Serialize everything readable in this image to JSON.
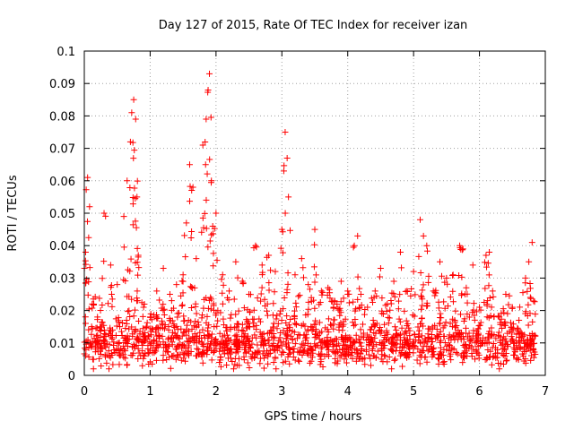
{
  "chart_data": {
    "type": "scatter",
    "title": "Day 127 of 2015, Rate Of TEC Index for receiver izan",
    "xlabel": "GPS time / hours",
    "ylabel": "ROTI / TECUs",
    "xlim": [
      0,
      7
    ],
    "ylim": [
      0,
      0.1
    ],
    "x_ticks": [
      "0",
      "1",
      "2",
      "3",
      "4",
      "5",
      "6",
      "7"
    ],
    "y_ticks": [
      "0",
      "0.01",
      "0.02",
      "0.03",
      "0.04",
      "0.05",
      "0.06",
      "0.07",
      "0.08",
      "0.09",
      "0.1"
    ],
    "grid": true,
    "marker": "plus",
    "series": [
      {
        "name": "ROTI",
        "color": "#ff0000",
        "x": [
          0.02,
          0.05,
          0.08,
          0.12,
          0.2,
          0.3,
          0.4,
          0.5,
          0.6,
          0.65,
          0.7,
          0.72,
          0.75,
          0.78,
          0.8,
          0.82,
          0.9,
          1.0,
          1.1,
          1.2,
          1.3,
          1.4,
          1.5,
          1.55,
          1.6,
          1.65,
          1.7,
          1.8,
          1.85,
          1.88,
          1.9,
          1.93,
          1.95,
          2.0,
          2.1,
          2.2,
          2.3,
          2.4,
          2.5,
          2.6,
          2.7,
          2.8,
          2.9,
          3.0,
          3.05,
          3.08,
          3.1,
          3.2,
          3.3,
          3.4,
          3.5,
          3.6,
          3.7,
          3.8,
          3.9,
          4.0,
          4.1,
          4.15,
          4.2,
          4.3,
          4.4,
          4.5,
          4.6,
          4.7,
          4.8,
          4.9,
          5.0,
          5.1,
          5.15,
          5.2,
          5.3,
          5.4,
          5.5,
          5.6,
          5.7,
          5.75,
          5.8,
          5.9,
          6.0,
          6.1,
          6.15,
          6.2,
          6.3,
          6.4,
          6.5,
          6.6,
          6.7,
          6.75,
          6.8
        ],
        "y": [
          0.038,
          0.061,
          0.052,
          0.022,
          0.018,
          0.05,
          0.034,
          0.028,
          0.049,
          0.06,
          0.072,
          0.081,
          0.085,
          0.079,
          0.055,
          0.037,
          0.021,
          0.018,
          0.026,
          0.033,
          0.025,
          0.028,
          0.031,
          0.047,
          0.065,
          0.058,
          0.036,
          0.071,
          0.079,
          0.088,
          0.093,
          0.06,
          0.046,
          0.05,
          0.031,
          0.026,
          0.035,
          0.029,
          0.025,
          0.04,
          0.034,
          0.037,
          0.032,
          0.045,
          0.075,
          0.067,
          0.055,
          0.031,
          0.036,
          0.028,
          0.045,
          0.026,
          0.027,
          0.023,
          0.029,
          0.026,
          0.04,
          0.043,
          0.025,
          0.021,
          0.024,
          0.033,
          0.022,
          0.029,
          0.038,
          0.026,
          0.032,
          0.048,
          0.043,
          0.04,
          0.026,
          0.035,
          0.03,
          0.031,
          0.04,
          0.039,
          0.027,
          0.034,
          0.021,
          0.037,
          0.038,
          0.026,
          0.018,
          0.025,
          0.021,
          0.017,
          0.03,
          0.035,
          0.041
        ]
      }
    ],
    "baseline_band": {
      "x_range": [
        0,
        6.85
      ],
      "y_range": [
        0.002,
        0.018
      ],
      "typical": 0.009
    }
  }
}
